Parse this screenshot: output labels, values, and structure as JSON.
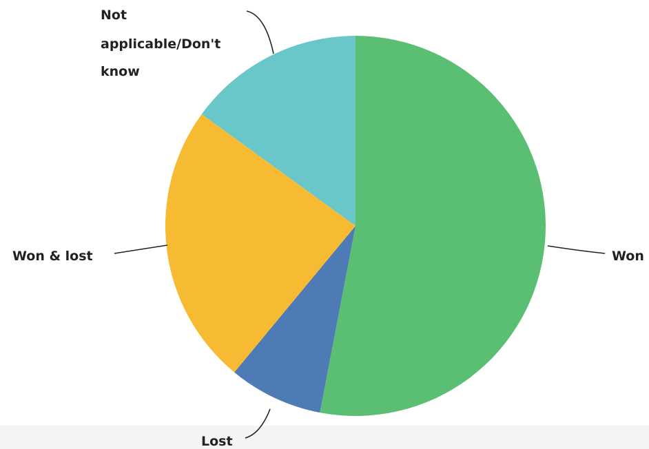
{
  "chart_data": {
    "type": "pie",
    "title": "",
    "start_angle_deg": 0,
    "direction": "clockwise",
    "slices": [
      {
        "label": "Won",
        "value": 53,
        "color": "#5bbf73"
      },
      {
        "label": "Lost",
        "value": 8,
        "color": "#4e7ab5"
      },
      {
        "label": "Won & lost",
        "value": 24,
        "color": "#f6bb33"
      },
      {
        "label": "Not applicable/Don't know",
        "value": 15,
        "color": "#69c7c9",
        "label_lines": [
          "Not",
          "applicable/Don't",
          "know"
        ]
      }
    ],
    "labels_outside": true,
    "leader_lines": true
  }
}
